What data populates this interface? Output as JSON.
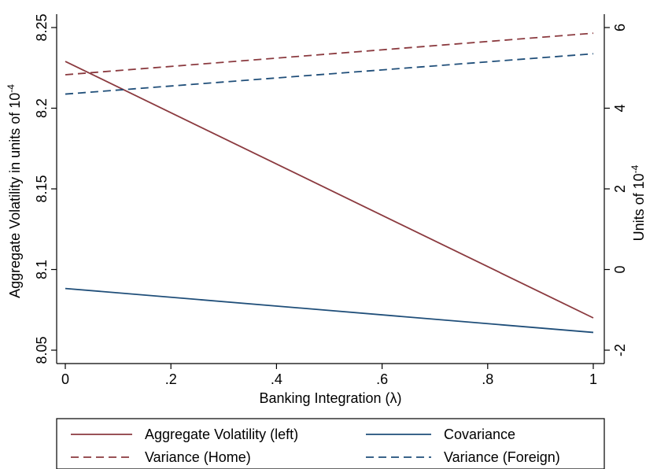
{
  "chart_data": {
    "type": "line",
    "xlabel": "Banking Integration (λ)",
    "ylabel_left": "Aggregate Volatility in units of 10",
    "ylabel_left_superscript": "-4",
    "ylabel_right": "Units of 10",
    "ylabel_right_superscript": "-4",
    "xlim": [
      0,
      1
    ],
    "ylim_left": [
      8.05,
      8.25
    ],
    "ylim_right": [
      -2,
      6
    ],
    "x_ticks": [
      0,
      0.2,
      0.4,
      0.6,
      0.8,
      1
    ],
    "x_tick_labels": [
      "0",
      ".2",
      ".4",
      ".6",
      ".8",
      "1"
    ],
    "y_ticks_left": [
      8.05,
      8.1,
      8.15,
      8.2,
      8.25
    ],
    "y_tick_labels_left": [
      "8.05",
      "8.1",
      "8.15",
      "8.2",
      "8.25"
    ],
    "y_ticks_right": [
      -2,
      0,
      2,
      4,
      6
    ],
    "y_tick_labels_right": [
      "-2",
      "0",
      "2",
      "4",
      "6"
    ],
    "grid": false,
    "legend_position": "bottom",
    "series": [
      {
        "name": "Aggregate Volatility (left)",
        "axis": "left",
        "style": "solid",
        "color": "#8b3a3f",
        "x": [
          0,
          1
        ],
        "y": [
          8.229,
          8.07
        ]
      },
      {
        "name": "Covariance",
        "axis": "right",
        "style": "solid",
        "color": "#1f4e79",
        "x": [
          0,
          1
        ],
        "y": [
          -0.47,
          -1.56
        ]
      },
      {
        "name": "Variance (Home)",
        "axis": "right",
        "style": "dashed",
        "color": "#8b3a3f",
        "x": [
          0,
          1
        ],
        "y": [
          4.83,
          5.86
        ]
      },
      {
        "name": "Variance (Foreign)",
        "axis": "right",
        "style": "dashed",
        "color": "#1f4e79",
        "x": [
          0,
          1
        ],
        "y": [
          4.35,
          5.35
        ]
      }
    ]
  }
}
